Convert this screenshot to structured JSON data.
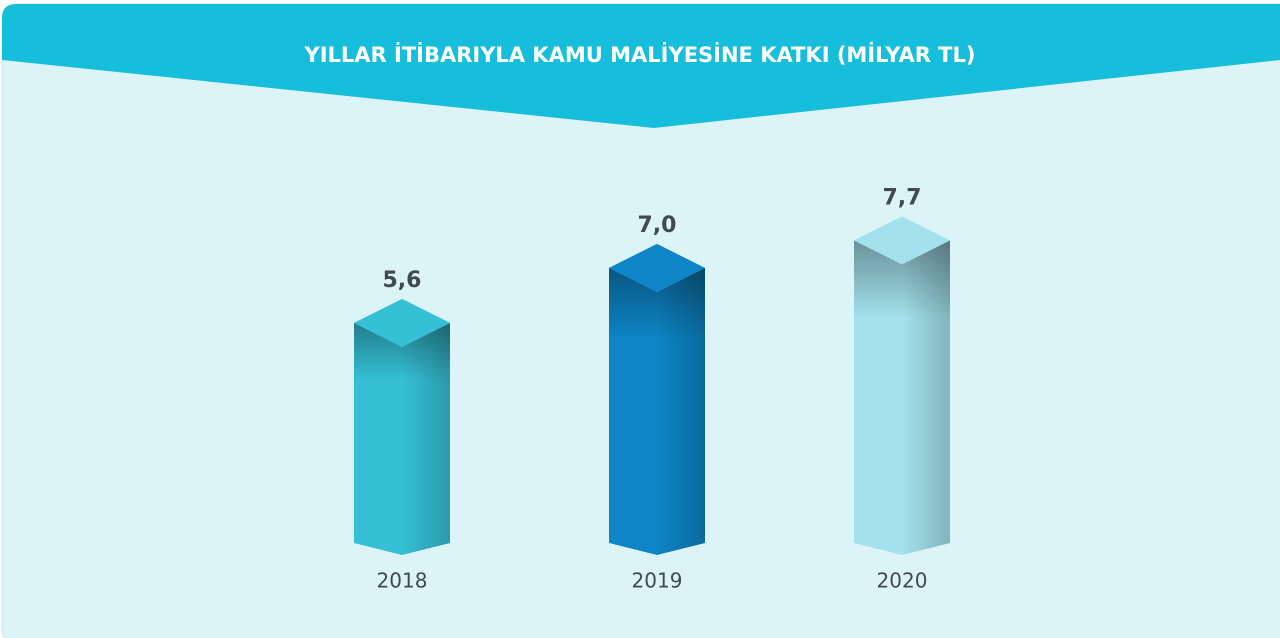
{
  "chart_data": {
    "type": "bar3d",
    "title": "YILLAR İTİBARIYLA KAMU MALİYESİNE KATKI (MİLYAR TL)",
    "categories": [
      "2018",
      "2019",
      "2020"
    ],
    "values": [
      5.6,
      7.0,
      7.7
    ],
    "value_labels": [
      "5,6",
      "7,0",
      "7,7"
    ],
    "colors": [
      "#35c0d5",
      "#0d85c6",
      "#a3e2ec"
    ]
  }
}
